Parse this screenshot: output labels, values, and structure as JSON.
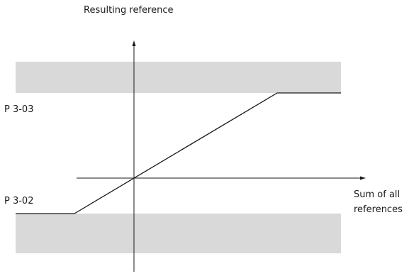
{
  "diagram": {
    "y_axis_label": "Resulting reference",
    "x_axis_label_line1": "Sum of all",
    "x_axis_label_line2": "references",
    "max_reference_label": "P 3-03",
    "min_reference_label": "P 3-02",
    "colors": {
      "band": "#d9d9d9",
      "line": "#1a1a1a",
      "text": "#1a1a1a",
      "background": "#ffffff"
    }
  }
}
